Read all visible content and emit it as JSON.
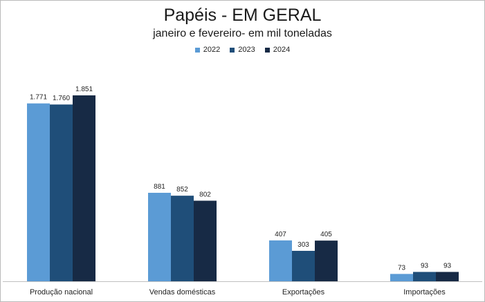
{
  "chart_data": {
    "type": "bar",
    "title": "Papéis - EM GERAL",
    "subtitle": "janeiro e fevereiro-  em mil toneladas",
    "categories": [
      "Produção nacional",
      "Vendas domésticas",
      "Exportações",
      "Importações"
    ],
    "series": [
      {
        "name": "2022",
        "color": "#5b9bd5",
        "values": [
          1771,
          881,
          407,
          73
        ],
        "labels": [
          "1.771",
          "881",
          "407",
          "73"
        ]
      },
      {
        "name": "2023",
        "color": "#1f4e79",
        "values": [
          1760,
          852,
          303,
          93
        ],
        "labels": [
          "1.760",
          "852",
          "303",
          "93"
        ]
      },
      {
        "name": "2024",
        "color": "#172a45",
        "values": [
          1851,
          802,
          405,
          93
        ],
        "labels": [
          "1.851",
          "802",
          "405",
          "93"
        ]
      }
    ],
    "ylim": [
      0,
      2000
    ],
    "legend": "top-center",
    "grid": false
  }
}
